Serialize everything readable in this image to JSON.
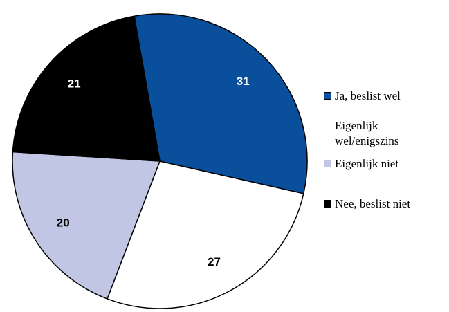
{
  "chart_data": {
    "type": "pie",
    "labels": [
      "Ja, beslist wel",
      "Eigenlijk wel/enigszins",
      "Eigenlijk niet",
      "Nee, beslist niet"
    ],
    "values": [
      31,
      27,
      20,
      21
    ],
    "colors": [
      "#0a4f9c",
      "#ffffff",
      "#c0c6e4",
      "#000000"
    ]
  }
}
